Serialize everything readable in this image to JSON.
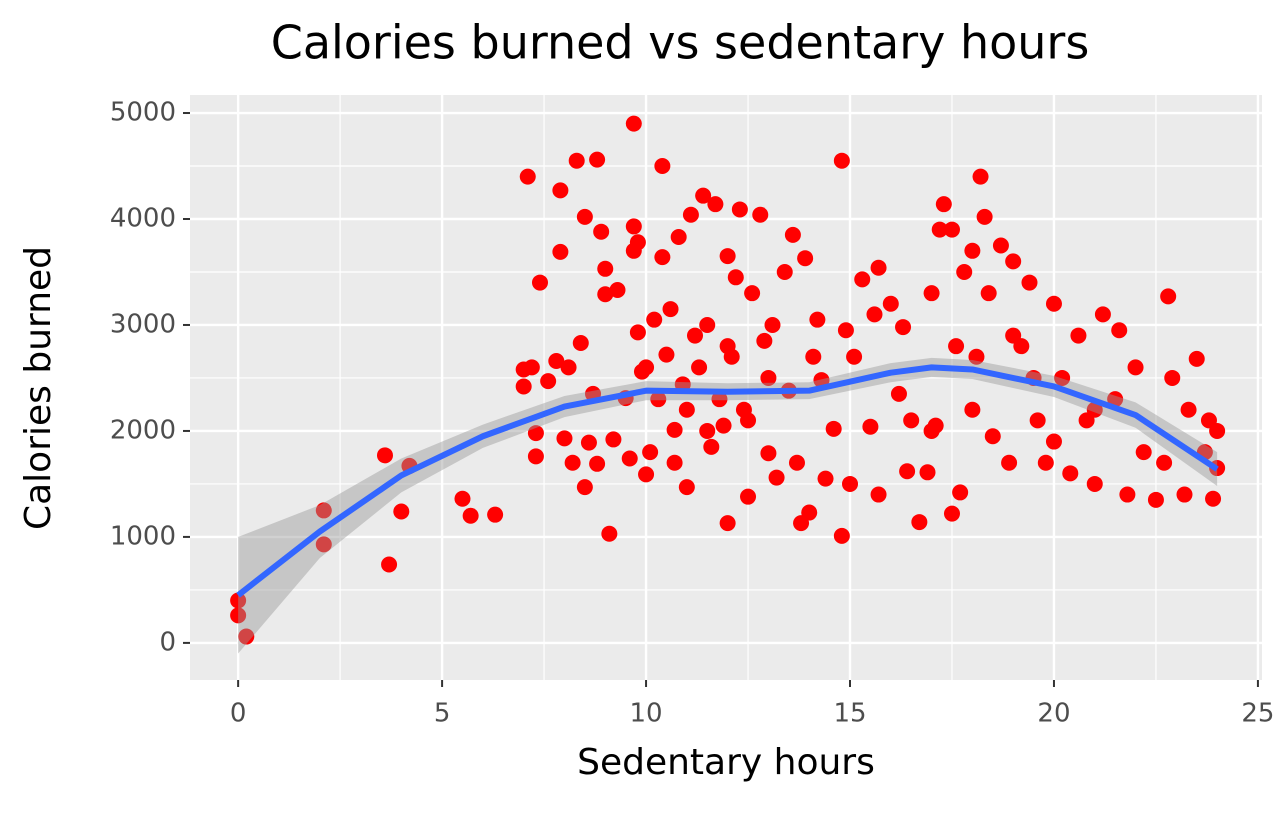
{
  "chart_data": {
    "type": "scatter",
    "title": "Calories burned vs sedentary hours",
    "x_label": "Sedentary hours",
    "y_label": "Calories burned",
    "xlim": [
      -1.18,
      25.1
    ],
    "ylim": [
      -350,
      5170
    ],
    "xticks": [
      0,
      5,
      10,
      15,
      20,
      25
    ],
    "yticks": [
      0,
      1000,
      2000,
      3000,
      4000,
      5000
    ],
    "grid": true,
    "panel_color": "#ebebeb",
    "points": {
      "color": "#ff0000",
      "x": [
        0,
        0,
        0.2,
        2.1,
        2.1,
        3.6,
        3.7,
        4,
        4.2,
        5.5,
        5.7,
        6.3,
        7,
        7,
        7.1,
        7.2,
        7.3,
        7.3,
        7.4,
        7.6,
        7.8,
        7.9,
        7.9,
        8,
        8.1,
        8.2,
        8.3,
        8.4,
        8.5,
        8.5,
        8.6,
        8.7,
        8.8,
        8.8,
        8.9,
        9,
        9,
        9.1,
        9.2,
        9.3,
        9.5,
        9.6,
        9.7,
        9.7,
        9.7,
        9.8,
        9.8,
        9.9,
        10,
        10,
        10.1,
        10.2,
        10.3,
        10.4,
        10.4,
        10.5,
        10.6,
        10.7,
        10.7,
        10.8,
        10.9,
        11,
        11.1,
        11.2,
        11.3,
        11.4,
        11.5,
        11.6,
        11.7,
        11.8,
        11.9,
        12,
        12,
        12.1,
        12.2,
        12.3,
        12.4,
        12.5,
        12.6,
        12.8,
        12.9,
        13,
        13.1,
        13.2,
        13.4,
        13.5,
        13.6,
        13.7,
        13.8,
        13.9,
        14,
        14.1,
        14.2,
        14.3,
        14.4,
        14.6,
        14.8,
        14.8,
        14.9,
        15,
        15.1,
        15.3,
        15.5,
        15.6,
        15.7,
        15.7,
        16,
        16.2,
        16.3,
        16.4,
        16.5,
        16.7,
        16.9,
        17,
        17.1,
        17.2,
        17.3,
        17.5,
        17.5,
        17.7,
        17.8,
        18,
        18.1,
        18.2,
        18.3,
        18.4,
        18.5,
        18.7,
        18.9,
        19,
        19.2,
        19.4,
        19.6,
        19.8,
        20,
        20.2,
        20.4,
        20.6,
        20.8,
        21,
        21.2,
        21.5,
        21.6,
        21.8,
        22,
        22.2,
        22.5,
        22.7,
        22.8,
        22.9,
        23.2,
        23.3,
        23.5,
        23.7,
        23.9,
        24,
        24,
        23.8,
        19,
        18,
        17.6,
        11,
        12.5,
        13,
        11.5,
        12,
        20,
        21,
        19.5,
        17
      ],
      "values": [
        400,
        260,
        60,
        1250,
        930,
        1770,
        740,
        1240,
        1670,
        1360,
        1200,
        1210,
        2420,
        2580,
        4400,
        2600,
        1980,
        1760,
        3400,
        2470,
        2660,
        4270,
        3690,
        1930,
        2600,
        1700,
        4550,
        2830,
        4020,
        1470,
        1890,
        2350,
        4560,
        1690,
        3880,
        3290,
        3530,
        1030,
        1920,
        3330,
        2310,
        1740,
        4900,
        3930,
        3700,
        2930,
        3780,
        2560,
        2600,
        1590,
        1800,
        3050,
        2300,
        4500,
        3640,
        2720,
        3150,
        2010,
        1700,
        3830,
        2440,
        1470,
        4040,
        2900,
        2600,
        4220,
        3000,
        1850,
        4140,
        2300,
        2050,
        1130,
        3650,
        2700,
        3450,
        4090,
        2200,
        1380,
        3300,
        4040,
        2850,
        1790,
        3000,
        1560,
        3500,
        2380,
        3850,
        1700,
        1130,
        3630,
        1230,
        2700,
        3050,
        2480,
        1550,
        2020,
        4550,
        1010,
        2950,
        1500,
        2700,
        3430,
        2040,
        3100,
        1400,
        3540,
        3200,
        2350,
        2980,
        1620,
        2100,
        1140,
        1610,
        3300,
        2050,
        3900,
        4140,
        1220,
        3900,
        1420,
        3500,
        3700,
        2700,
        4400,
        4020,
        3300,
        1950,
        3750,
        1700,
        3600,
        2800,
        3400,
        2100,
        1700,
        3200,
        2500,
        1600,
        2900,
        2100,
        1500,
        3100,
        2300,
        2950,
        1400,
        2600,
        1800,
        1350,
        1700,
        3270,
        2500,
        1400,
        2200,
        2680,
        1800,
        1360,
        1650,
        2000,
        2100,
        2900,
        2200,
        2800,
        2200,
        2100,
        2500,
        2000,
        2800,
        1900,
        2200,
        2500,
        2000
      ]
    },
    "smooth": {
      "color": "#3366ff",
      "band_color": "#999999",
      "x": [
        0,
        2,
        4,
        6,
        8,
        10,
        12,
        14,
        16,
        17,
        18,
        20,
        22,
        24
      ],
      "values": [
        450,
        1050,
        1580,
        1950,
        2230,
        2380,
        2370,
        2380,
        2550,
        2600,
        2580,
        2420,
        2150,
        1640
      ],
      "lower": [
        -100,
        800,
        1420,
        1840,
        2130,
        2290,
        2290,
        2300,
        2460,
        2510,
        2490,
        2320,
        2030,
        1480
      ],
      "upper": [
        1000,
        1300,
        1740,
        2060,
        2330,
        2470,
        2450,
        2460,
        2640,
        2690,
        2670,
        2520,
        2270,
        1800
      ]
    }
  }
}
